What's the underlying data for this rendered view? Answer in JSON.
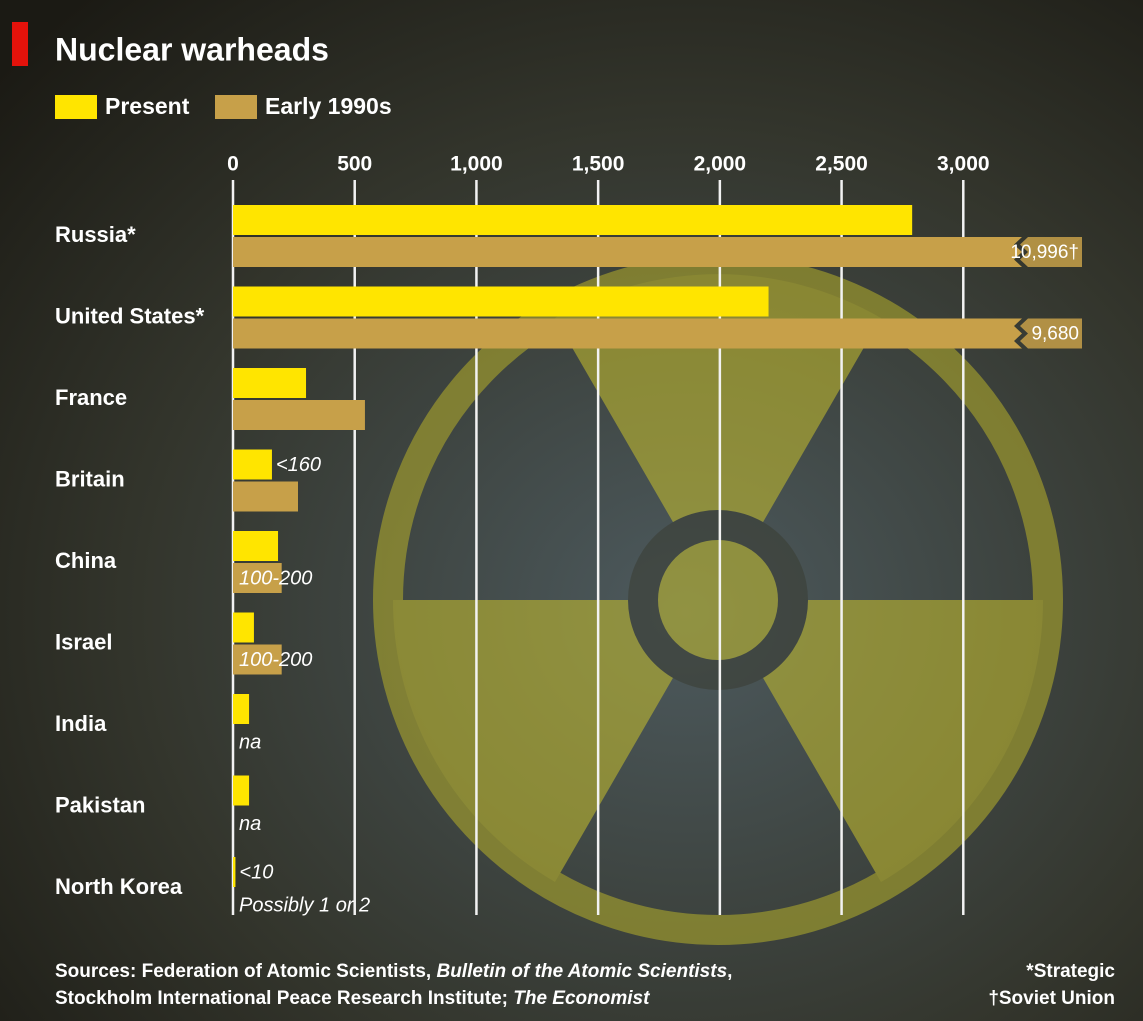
{
  "chart_data": {
    "type": "hbar",
    "title": "Nuclear warheads",
    "categories": [
      "Russia*",
      "United States*",
      "France",
      "Britain",
      "China",
      "Israel",
      "India",
      "Pakistan",
      "North Korea"
    ],
    "series": [
      {
        "name": "Present",
        "color": "#ffe500",
        "values": [
          2790,
          2200,
          300,
          160,
          185,
          86,
          66,
          66,
          10
        ],
        "value_labels": [
          null,
          null,
          null,
          "<160",
          null,
          null,
          null,
          null,
          "<10"
        ]
      },
      {
        "name": "Early 1990s",
        "color": "#c7a049",
        "values": [
          10996,
          9680,
          542,
          267,
          200,
          200,
          null,
          null,
          null
        ],
        "value_labels": [
          "10,996†",
          "9,680",
          null,
          null,
          "100-200",
          "100-200",
          "na",
          "na",
          "Possibly 1 or 2"
        ]
      }
    ],
    "xlim": [
      0,
      3500
    ],
    "xticks": [
      0,
      500,
      {
        "value": 1000,
        "label": "1,000"
      },
      {
        "value": 1500,
        "label": "1,500"
      },
      {
        "value": 2000,
        "label": "2,000"
      },
      {
        "value": 2500,
        "label": "2,500"
      },
      {
        "value": 3000,
        "label": "3,000"
      }
    ],
    "grid": true,
    "axis_break": true,
    "sources": [
      [
        "Sources: Federation of Atomic Scientists, ",
        "Bulletin of the Atomic Scientists",
        ","
      ],
      [
        "Stockholm International Peace Research Institute; ",
        "The Economist"
      ]
    ],
    "notes": [
      "*Strategic",
      "†Soviet Union"
    ]
  }
}
